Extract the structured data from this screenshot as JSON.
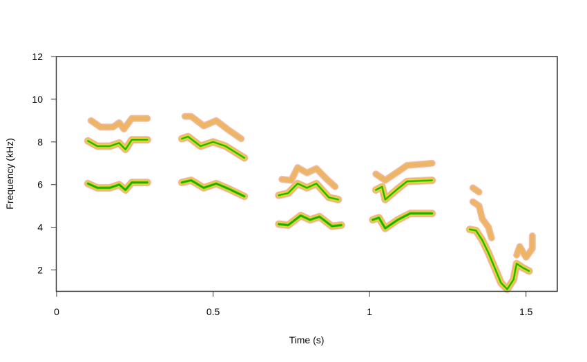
{
  "chart_data": {
    "type": "spectrogram",
    "title": "",
    "xlabel": "Time (s)",
    "ylabel": "Frequency (kHz)",
    "xlim": [
      0,
      1.6
    ],
    "ylim": [
      1,
      12
    ],
    "xticks": [
      0,
      0.5,
      1,
      1.5
    ],
    "xtick_labels": [
      "0",
      "0.5",
      "1",
      "1.5"
    ],
    "yticks": [
      2,
      4,
      6,
      8,
      10,
      12
    ],
    "ytick_labels": [
      "2",
      "4",
      "6",
      "8",
      "10",
      "12"
    ],
    "grid": false,
    "legend": null,
    "colors": {
      "halo": "#f2b8a8",
      "low": "#ebb562",
      "mid": "#e8e830",
      "high": "#79d100",
      "peak": "#16a600",
      "axis": "#333333"
    },
    "syllables": [
      {
        "name": "syllable-1",
        "time_range": [
          0.1,
          0.29
        ],
        "harmonics": [
          {
            "intensity": "strong",
            "points": [
              [
                0.1,
                6.05
              ],
              [
                0.13,
                5.85
              ],
              [
                0.17,
                5.85
              ],
              [
                0.2,
                6.0
              ],
              [
                0.22,
                5.75
              ],
              [
                0.24,
                6.1
              ],
              [
                0.29,
                6.1
              ]
            ]
          },
          {
            "intensity": "medium",
            "points": [
              [
                0.1,
                8.05
              ],
              [
                0.13,
                7.8
              ],
              [
                0.17,
                7.8
              ],
              [
                0.2,
                7.95
              ],
              [
                0.22,
                7.65
              ],
              [
                0.24,
                8.1
              ],
              [
                0.29,
                8.1
              ]
            ]
          },
          {
            "intensity": "weak",
            "points": [
              [
                0.11,
                9.0
              ],
              [
                0.14,
                8.7
              ],
              [
                0.18,
                8.7
              ],
              [
                0.2,
                8.9
              ],
              [
                0.215,
                8.6
              ],
              [
                0.24,
                9.1
              ],
              [
                0.29,
                9.1
              ]
            ]
          }
        ]
      },
      {
        "name": "syllable-2",
        "time_range": [
          0.4,
          0.6
        ],
        "harmonics": [
          {
            "intensity": "strong",
            "points": [
              [
                0.4,
                6.1
              ],
              [
                0.43,
                6.2
              ],
              [
                0.47,
                5.85
              ],
              [
                0.51,
                6.05
              ],
              [
                0.55,
                5.8
              ],
              [
                0.6,
                5.45
              ]
            ]
          },
          {
            "intensity": "medium",
            "points": [
              [
                0.4,
                8.15
              ],
              [
                0.42,
                8.25
              ],
              [
                0.46,
                7.8
              ],
              [
                0.5,
                8.0
              ],
              [
                0.54,
                7.8
              ],
              [
                0.6,
                7.25
              ]
            ]
          },
          {
            "intensity": "weak",
            "points": [
              [
                0.41,
                9.2
              ],
              [
                0.43,
                9.2
              ],
              [
                0.47,
                8.75
              ],
              [
                0.51,
                9.0
              ],
              [
                0.55,
                8.55
              ],
              [
                0.59,
                8.15
              ]
            ]
          }
        ]
      },
      {
        "name": "syllable-3",
        "time_range": [
          0.71,
          0.91
        ],
        "harmonics": [
          {
            "intensity": "strong",
            "points": [
              [
                0.71,
                4.15
              ],
              [
                0.74,
                4.1
              ],
              [
                0.78,
                4.55
              ],
              [
                0.81,
                4.35
              ],
              [
                0.84,
                4.5
              ],
              [
                0.88,
                4.05
              ],
              [
                0.91,
                4.1
              ]
            ]
          },
          {
            "intensity": "medium",
            "points": [
              [
                0.71,
                5.5
              ],
              [
                0.74,
                5.6
              ],
              [
                0.77,
                6.05
              ],
              [
                0.8,
                5.85
              ],
              [
                0.83,
                6.05
              ],
              [
                0.87,
                5.4
              ],
              [
                0.9,
                5.3
              ]
            ]
          },
          {
            "intensity": "weak",
            "points": [
              [
                0.72,
                6.25
              ],
              [
                0.75,
                6.2
              ],
              [
                0.77,
                6.8
              ],
              [
                0.8,
                6.55
              ],
              [
                0.83,
                6.75
              ],
              [
                0.86,
                6.3
              ],
              [
                0.89,
                5.9
              ]
            ]
          }
        ]
      },
      {
        "name": "syllable-4",
        "time_range": [
          1.01,
          1.2
        ],
        "harmonics": [
          {
            "intensity": "strong",
            "points": [
              [
                1.01,
                4.35
              ],
              [
                1.03,
                4.45
              ],
              [
                1.05,
                3.95
              ],
              [
                1.09,
                4.35
              ],
              [
                1.13,
                4.65
              ],
              [
                1.2,
                4.65
              ]
            ]
          },
          {
            "intensity": "medium",
            "points": [
              [
                1.02,
                5.75
              ],
              [
                1.04,
                5.9
              ],
              [
                1.05,
                5.3
              ],
              [
                1.09,
                5.8
              ],
              [
                1.12,
                6.15
              ],
              [
                1.2,
                6.2
              ]
            ]
          },
          {
            "intensity": "weak",
            "points": [
              [
                1.02,
                6.5
              ],
              [
                1.05,
                6.2
              ],
              [
                1.09,
                6.6
              ],
              [
                1.12,
                6.9
              ],
              [
                1.2,
                7.0
              ]
            ]
          }
        ]
      },
      {
        "name": "syllable-5",
        "time_range": [
          1.32,
          1.52
        ],
        "harmonics": [
          {
            "intensity": "medium",
            "points": [
              [
                1.32,
                3.9
              ],
              [
                1.34,
                3.85
              ],
              [
                1.36,
                3.4
              ],
              [
                1.38,
                2.8
              ],
              [
                1.4,
                2.1
              ],
              [
                1.42,
                1.4
              ],
              [
                1.44,
                1.1
              ],
              [
                1.46,
                1.55
              ],
              [
                1.47,
                2.3
              ],
              [
                1.49,
                2.1
              ],
              [
                1.51,
                1.95
              ]
            ]
          },
          {
            "intensity": "weak",
            "points": [
              [
                1.33,
                5.2
              ],
              [
                1.35,
                5.0
              ],
              [
                1.36,
                4.4
              ],
              [
                1.38,
                4.0
              ],
              [
                1.39,
                3.5
              ]
            ]
          },
          {
            "intensity": "weak",
            "points": [
              [
                1.33,
                5.85
              ],
              [
                1.35,
                5.65
              ]
            ]
          },
          {
            "intensity": "weak",
            "points": [
              [
                1.47,
                2.7
              ],
              [
                1.48,
                3.1
              ],
              [
                1.5,
                2.6
              ],
              [
                1.52,
                3.0
              ],
              [
                1.52,
                3.6
              ]
            ]
          }
        ]
      }
    ]
  }
}
